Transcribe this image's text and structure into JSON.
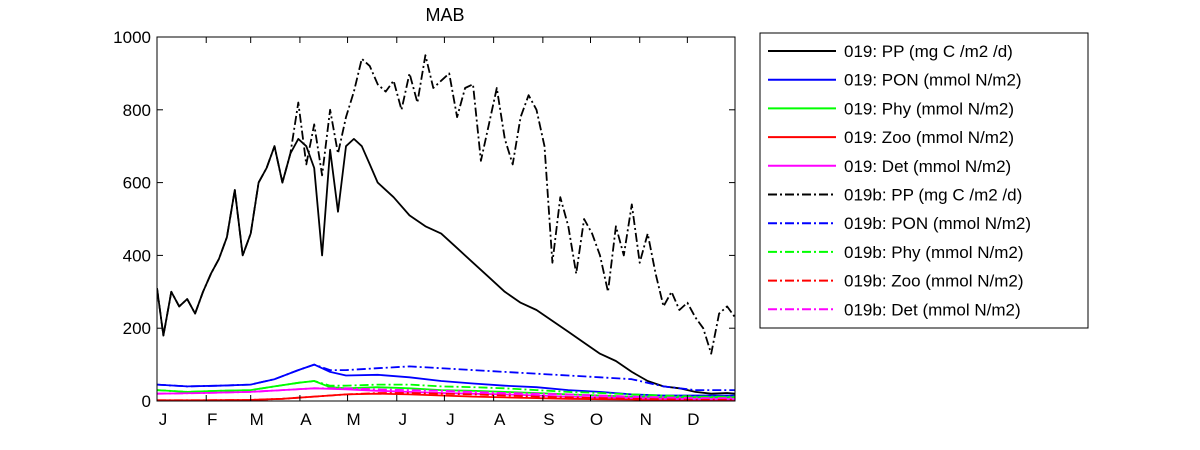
{
  "chart_data": {
    "type": "line",
    "title": "MAB",
    "xlabel": "",
    "ylabel": "",
    "ylim": [
      0,
      1000
    ],
    "xlim": [
      1,
      365
    ],
    "yticks": [
      0,
      200,
      400,
      600,
      800,
      1000
    ],
    "xtick_labels": [
      "J",
      "F",
      "M",
      "A",
      "M",
      "J",
      "J",
      "A",
      "S",
      "O",
      "N",
      "D"
    ],
    "xtick_days": [
      1,
      32,
      60,
      91,
      121,
      152,
      182,
      213,
      244,
      274,
      305,
      335
    ],
    "grid": false,
    "legend_position": "outside-right",
    "series": [
      {
        "name": "019: PP (mg C /m2 /d)",
        "color": "#000000",
        "style": "solid",
        "x": [
          1,
          5,
          10,
          15,
          20,
          25,
          30,
          35,
          40,
          45,
          50,
          55,
          60,
          65,
          70,
          75,
          80,
          85,
          90,
          95,
          100,
          105,
          110,
          115,
          120,
          125,
          130,
          135,
          140,
          150,
          160,
          170,
          180,
          190,
          200,
          210,
          220,
          230,
          240,
          250,
          260,
          270,
          280,
          290,
          300,
          310,
          320,
          330,
          340,
          350,
          360,
          365
        ],
        "y": [
          310,
          180,
          300,
          260,
          280,
          240,
          300,
          350,
          390,
          450,
          580,
          400,
          460,
          600,
          640,
          700,
          600,
          680,
          720,
          700,
          640,
          400,
          690,
          520,
          700,
          720,
          700,
          650,
          600,
          560,
          510,
          480,
          460,
          420,
          380,
          340,
          300,
          270,
          250,
          220,
          190,
          160,
          130,
          110,
          80,
          55,
          40,
          35,
          25,
          20,
          22,
          20
        ]
      },
      {
        "name": "019: PON (mmol N/m2)",
        "color": "#0000ff",
        "style": "solid",
        "x": [
          1,
          20,
          40,
          60,
          75,
          90,
          100,
          110,
          120,
          140,
          160,
          180,
          200,
          220,
          240,
          260,
          280,
          300,
          320,
          340,
          365
        ],
        "y": [
          45,
          40,
          42,
          45,
          60,
          85,
          100,
          80,
          70,
          72,
          65,
          55,
          48,
          42,
          38,
          30,
          25,
          18,
          15,
          15,
          15
        ]
      },
      {
        "name": "019: Phy (mmol N/m2)",
        "color": "#00ff00",
        "style": "solid",
        "x": [
          1,
          20,
          40,
          60,
          75,
          90,
          100,
          110,
          120,
          140,
          160,
          180,
          200,
          220,
          240,
          260,
          280,
          300,
          320,
          340,
          365
        ],
        "y": [
          30,
          25,
          28,
          30,
          40,
          50,
          55,
          38,
          35,
          38,
          35,
          30,
          28,
          25,
          22,
          18,
          15,
          12,
          10,
          10,
          10
        ]
      },
      {
        "name": "019: Zoo (mmol N/m2)",
        "color": "#ff0000",
        "style": "solid",
        "x": [
          1,
          30,
          60,
          80,
          100,
          120,
          140,
          160,
          180,
          200,
          220,
          240,
          260,
          280,
          300,
          320,
          340,
          365
        ],
        "y": [
          2,
          2,
          3,
          6,
          12,
          18,
          20,
          18,
          15,
          12,
          10,
          8,
          6,
          5,
          4,
          3,
          3,
          3
        ]
      },
      {
        "name": "019: Det (mmol N/m2)",
        "color": "#ff00ff",
        "style": "solid",
        "x": [
          1,
          30,
          60,
          80,
          100,
          120,
          140,
          160,
          180,
          200,
          220,
          240,
          260,
          280,
          300,
          320,
          340,
          365
        ],
        "y": [
          20,
          22,
          25,
          30,
          35,
          32,
          28,
          25,
          22,
          20,
          18,
          15,
          12,
          10,
          8,
          6,
          5,
          5
        ]
      },
      {
        "name": "019b: PP (mg C /m2 /d)",
        "color": "#000000",
        "style": "dashdot",
        "x": [
          1,
          5,
          10,
          15,
          20,
          25,
          30,
          35,
          40,
          45,
          50,
          55,
          60,
          65,
          70,
          75,
          80,
          85,
          90,
          95,
          100,
          105,
          110,
          115,
          120,
          125,
          130,
          135,
          140,
          145,
          150,
          155,
          160,
          165,
          170,
          175,
          180,
          185,
          190,
          195,
          200,
          205,
          210,
          215,
          220,
          225,
          230,
          235,
          240,
          245,
          250,
          255,
          260,
          265,
          270,
          275,
          280,
          285,
          290,
          295,
          300,
          305,
          310,
          315,
          320,
          325,
          330,
          335,
          340,
          345,
          350,
          355,
          360,
          365
        ],
        "y": [
          310,
          180,
          300,
          260,
          280,
          240,
          300,
          350,
          390,
          450,
          580,
          400,
          460,
          600,
          640,
          700,
          600,
          680,
          820,
          650,
          760,
          620,
          800,
          680,
          780,
          850,
          940,
          920,
          870,
          850,
          880,
          800,
          900,
          820,
          950,
          860,
          880,
          900,
          780,
          860,
          870,
          660,
          760,
          860,
          720,
          650,
          780,
          840,
          800,
          700,
          380,
          560,
          480,
          350,
          500,
          460,
          400,
          300,
          480,
          400,
          540,
          380,
          460,
          350,
          260,
          300,
          250,
          270,
          230,
          200,
          130,
          240,
          260,
          230
        ]
      },
      {
        "name": "019b: PON (mmol N/m2)",
        "color": "#0000ff",
        "style": "dashdot",
        "x": [
          1,
          20,
          40,
          60,
          75,
          90,
          100,
          110,
          120,
          140,
          160,
          180,
          200,
          220,
          240,
          260,
          280,
          300,
          320,
          340,
          365
        ],
        "y": [
          45,
          40,
          42,
          45,
          60,
          85,
          100,
          85,
          85,
          90,
          95,
          90,
          85,
          80,
          75,
          70,
          65,
          60,
          40,
          30,
          30
        ]
      },
      {
        "name": "019b: Phy (mmol N/m2)",
        "color": "#00ff00",
        "style": "dashdot",
        "x": [
          1,
          20,
          40,
          60,
          75,
          90,
          100,
          110,
          120,
          140,
          160,
          180,
          200,
          220,
          240,
          260,
          280,
          300,
          320,
          340,
          365
        ],
        "y": [
          30,
          25,
          28,
          30,
          40,
          50,
          55,
          42,
          42,
          45,
          45,
          40,
          38,
          35,
          30,
          25,
          22,
          18,
          15,
          12,
          12
        ]
      },
      {
        "name": "019b: Zoo (mmol N/m2)",
        "color": "#ff0000",
        "style": "dashdot",
        "x": [
          1,
          30,
          60,
          80,
          100,
          120,
          140,
          160,
          180,
          200,
          220,
          240,
          260,
          280,
          300,
          320,
          340,
          365
        ],
        "y": [
          2,
          2,
          3,
          6,
          12,
          18,
          22,
          22,
          20,
          18,
          15,
          12,
          10,
          8,
          6,
          5,
          4,
          4
        ]
      },
      {
        "name": "019b: Det (mmol N/m2)",
        "color": "#ff00ff",
        "style": "dashdot",
        "x": [
          1,
          30,
          60,
          80,
          100,
          120,
          140,
          160,
          180,
          200,
          220,
          240,
          260,
          280,
          300,
          320,
          340,
          365
        ],
        "y": [
          20,
          22,
          25,
          30,
          35,
          35,
          32,
          30,
          28,
          25,
          22,
          20,
          18,
          15,
          12,
          10,
          8,
          8
        ]
      }
    ]
  }
}
